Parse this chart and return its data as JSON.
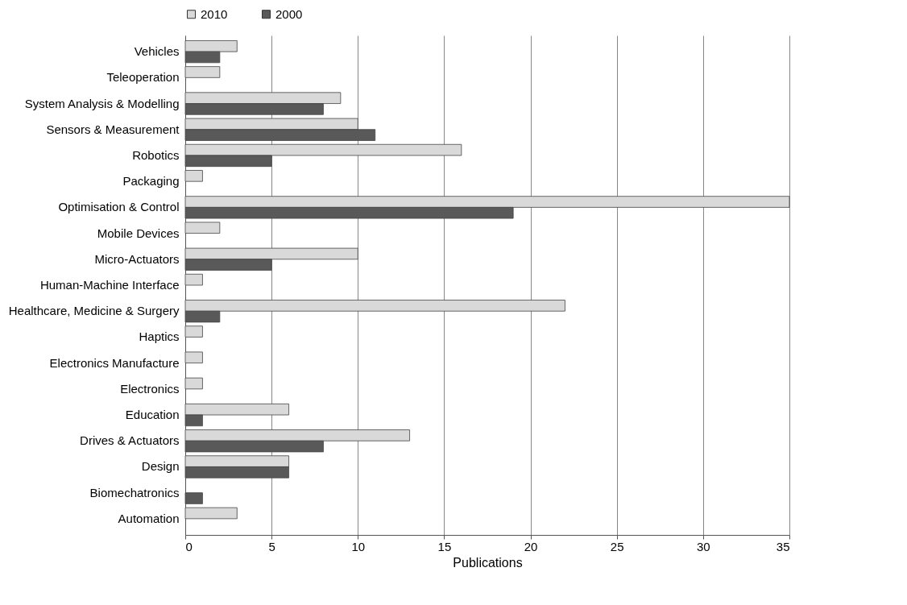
{
  "chart_data": {
    "type": "bar",
    "orientation": "horizontal",
    "xlabel": "Publications",
    "categories": [
      "Vehicles",
      "Teleoperation",
      "System Analysis & Modelling",
      "Sensors & Measurement",
      "Robotics",
      "Packaging",
      "Optimisation & Control",
      "Mobile Devices",
      "Micro-Actuators",
      "Human-Machine Interface",
      "Healthcare, Medicine & Surgery",
      "Haptics",
      "Electronics Manufacture",
      "Electronics",
      "Education",
      "Drives & Actuators",
      "Design",
      "Biomechatronics",
      "Automation"
    ],
    "series": [
      {
        "name": "2010",
        "color": "#d9d9d9",
        "values": [
          3,
          2,
          9,
          10,
          16,
          1,
          35,
          2,
          10,
          1,
          22,
          1,
          1,
          1,
          6,
          13,
          6,
          0,
          3
        ]
      },
      {
        "name": "2000",
        "color": "#595959",
        "values": [
          2,
          0,
          8,
          11,
          5,
          0,
          19,
          0,
          5,
          0,
          2,
          0,
          0,
          0,
          1,
          8,
          6,
          1,
          0
        ]
      }
    ],
    "xlim": [
      0,
      35
    ],
    "xticks": [
      0,
      5,
      10,
      15,
      20,
      25,
      30,
      35
    ],
    "grid": "x",
    "legend": "top"
  }
}
